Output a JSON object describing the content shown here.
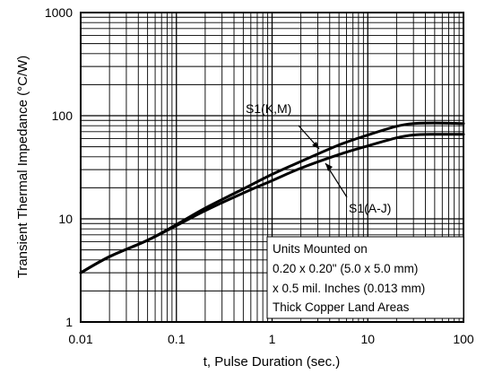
{
  "chart_data": {
    "type": "line",
    "x_scale": "log",
    "y_scale": "log",
    "xlim": [
      0.01,
      100
    ],
    "ylim": [
      1,
      1000
    ],
    "xlabel": "t, Pulse Duration (sec.)",
    "ylabel": "Transient Thermal Impedance (°C/W)",
    "x_tick_labels": [
      "0.01",
      "0.1",
      "1",
      "10",
      "100"
    ],
    "y_tick_labels": [
      "1",
      "10",
      "100",
      "1000"
    ],
    "grid": true,
    "series": [
      {
        "name": "S1(K,M)",
        "x": [
          0.01,
          0.02,
          0.05,
          0.1,
          0.2,
          0.5,
          1,
          2,
          5,
          10,
          20,
          30,
          50,
          100
        ],
        "y": [
          3.0,
          4.3,
          6.2,
          8.8,
          12.7,
          19.5,
          27,
          36,
          52,
          65,
          79,
          84,
          85,
          84
        ]
      },
      {
        "name": "S1(A-J)",
        "x": [
          0.01,
          0.02,
          0.05,
          0.1,
          0.2,
          0.5,
          1,
          2,
          5,
          10,
          20,
          30,
          50,
          100
        ],
        "y": [
          3.0,
          4.3,
          6.2,
          8.6,
          12.0,
          17.8,
          23.5,
          31,
          42,
          51,
          61,
          65,
          66,
          66
        ]
      }
    ],
    "annotation": {
      "lines": [
        "Units Mounted on",
        "0.20 x 0.20\" (5.0 x 5.0 mm)",
        "x 0.5 mil. Inches (0.013 mm)",
        "Thick Copper Land Areas"
      ]
    }
  }
}
